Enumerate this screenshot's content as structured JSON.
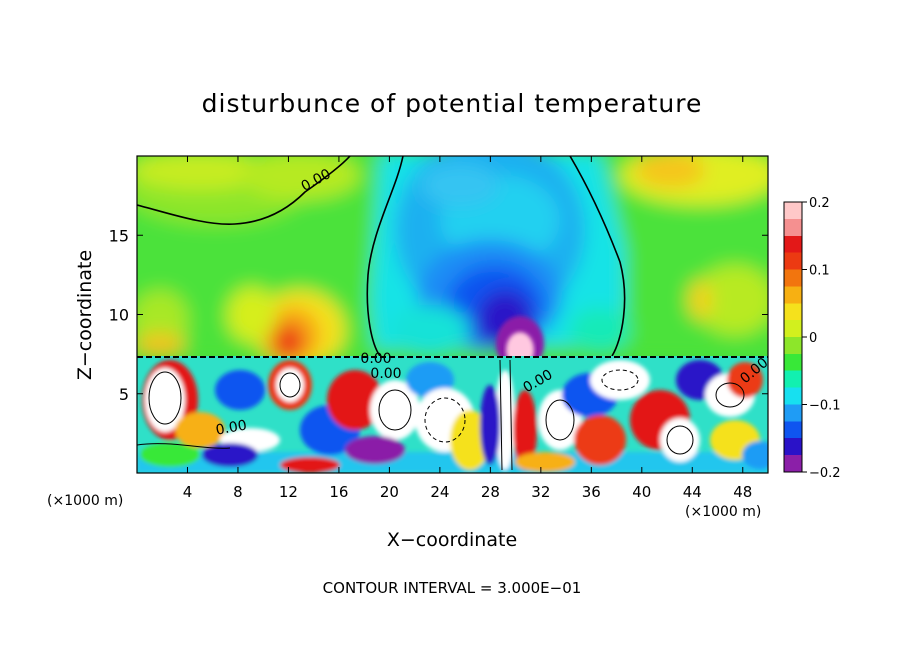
{
  "chart_data": {
    "type": "heatmap",
    "title": "disturbunce of potential temperature",
    "xlabel": "X−coordinate",
    "ylabel": "Z−coordinate",
    "x_unit_left": "(×1000 m)",
    "x_unit_right": "(×1000 m)",
    "footer": "CONTOUR INTERVAL = 3.000E−01",
    "xlim": [
      0,
      50
    ],
    "ylim": [
      0,
      20
    ],
    "x_ticks": [
      4,
      8,
      12,
      16,
      20,
      24,
      28,
      32,
      36,
      40,
      44,
      48
    ],
    "y_ticks": [
      5,
      10,
      15
    ],
    "colorbar": {
      "vmin": -0.2,
      "vmax": 0.2,
      "tick_values": [
        0.2,
        0.1,
        0,
        -0.1,
        -0.2
      ],
      "tick_labels": [
        "0.2",
        "0.1",
        "0",
        "−0.1",
        "−0.2"
      ],
      "colors": [
        "#8b1fa8",
        "#2a12c8",
        "#0f55f0",
        "#1f9cf5",
        "#17e0f0",
        "#12f0b0",
        "#38e838",
        "#8de62a",
        "#d2f01e",
        "#f5e11c",
        "#f7b012",
        "#f2750e",
        "#ec3a12",
        "#e31818",
        "#f59090",
        "#ffc8c8"
      ]
    },
    "contour_labels": [
      "0.00",
      "0.00",
      "0.00",
      "0.00",
      "0.00",
      "0.00"
    ],
    "regions": [
      {
        "name": "upper-warm-left",
        "x": [
          10,
          15
        ],
        "z": [
          7.5,
          11
        ],
        "value": 0.12
      },
      {
        "name": "upper-cold-center",
        "x": [
          24,
          36
        ],
        "z": [
          7.5,
          20
        ],
        "value": -0.16
      },
      {
        "name": "upper-warm-center-core",
        "x": [
          29,
          31
        ],
        "z": [
          7.5,
          9.5
        ],
        "value": 0.2
      },
      {
        "name": "upper-warm-right",
        "x": [
          44,
          50
        ],
        "z": [
          10,
          14
        ],
        "value": 0.08
      },
      {
        "name": "lower-turbulent-layer",
        "x": [
          0,
          50
        ],
        "z": [
          0,
          7.4
        ],
        "value": "mixed"
      }
    ]
  }
}
